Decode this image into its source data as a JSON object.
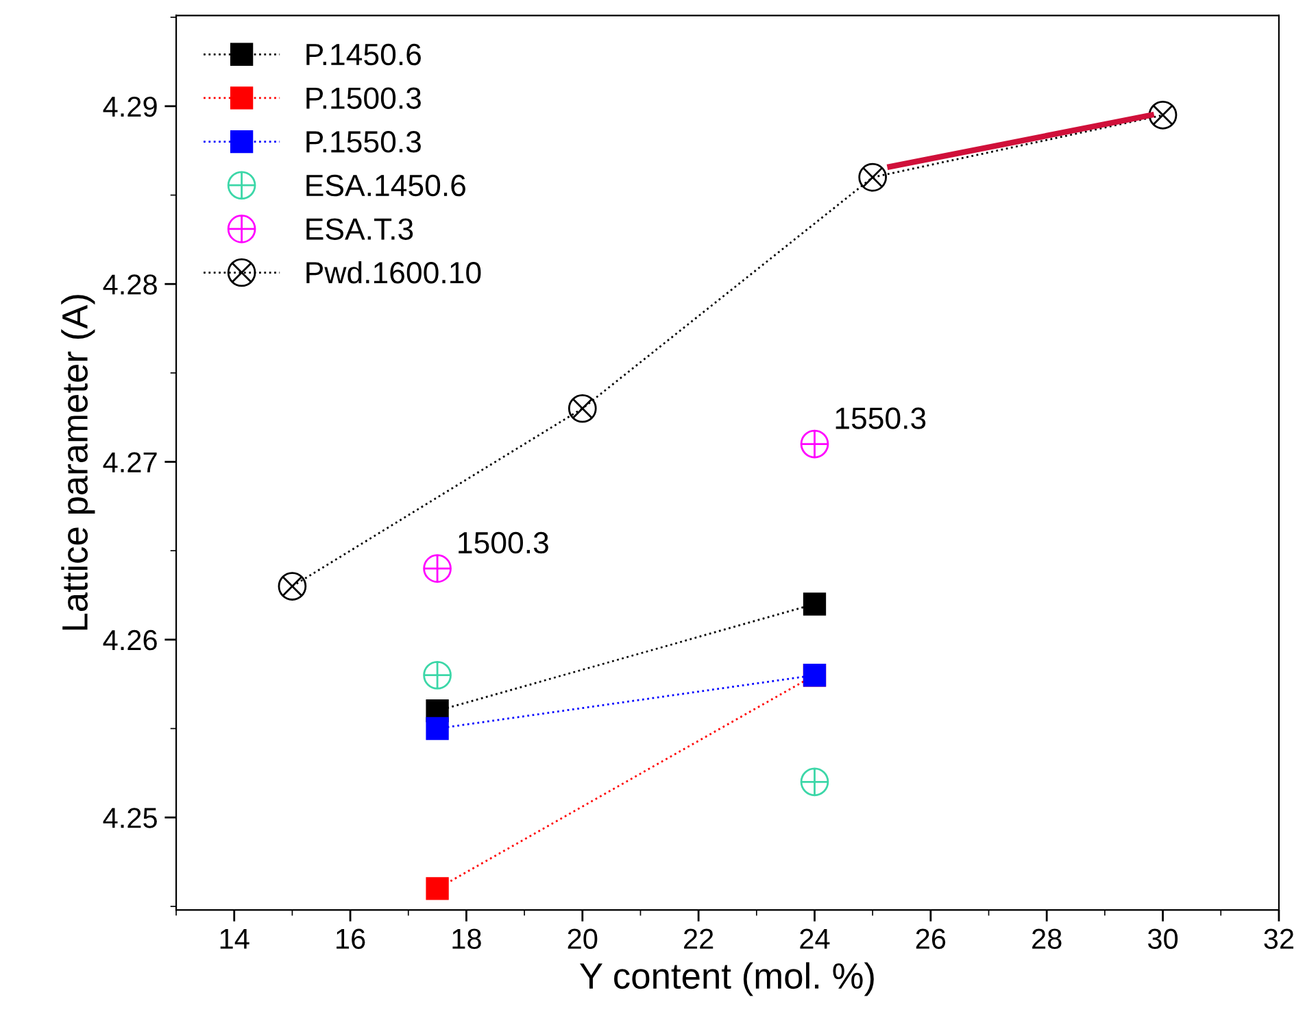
{
  "chart_data": {
    "type": "line",
    "xlabel": "Y content (mol. %)",
    "ylabel": "Lattice parameter (A)",
    "xlim": [
      13,
      32
    ],
    "xticks": [
      14,
      16,
      18,
      20,
      22,
      24,
      26,
      28,
      30,
      32
    ],
    "ylim": [
      4.2448,
      4.2951
    ],
    "yticks": [
      4.25,
      4.26,
      4.27,
      4.28,
      4.29
    ],
    "grid": false,
    "legend": "top left",
    "series": [
      {
        "name": "P.1450.6",
        "color": "#000000",
        "marker": "square",
        "line_style": "dotted",
        "x": [
          17.5,
          24
        ],
        "values": [
          4.256,
          4.262
        ]
      },
      {
        "name": "P.1500.3",
        "color": "#ff0000",
        "marker": "square",
        "line_style": "dotted",
        "x": [
          17.5,
          24
        ],
        "values": [
          4.246,
          4.258
        ]
      },
      {
        "name": "P.1550.3",
        "color": "#0000ff",
        "marker": "square",
        "line_style": "dotted",
        "x": [
          17.5,
          24
        ],
        "values": [
          4.255,
          4.258
        ]
      },
      {
        "name": "ESA.1450.6",
        "type": "scatter",
        "color": "#3cd7a8",
        "marker": "cross",
        "x": [
          17.5,
          24
        ],
        "values": [
          4.258,
          4.252
        ]
      },
      {
        "name": "ESA.T.3",
        "type": "scatter",
        "color": "#ff00ff",
        "marker": "cross",
        "x": [
          17.5,
          24
        ],
        "values": [
          4.264,
          4.271
        ]
      },
      {
        "name": "Pwd.1600.10",
        "color": "#000000",
        "marker": "cross",
        "line_style": "dotted",
        "x": [
          15,
          20,
          25,
          30
        ],
        "values": [
          4.263,
          4.273,
          4.286,
          4.2895
        ]
      },
      {
        "color": "#d0103a",
        "line_style": "solid",
        "marker": "none",
        "x": [
          25.3,
          29.8
        ],
        "values": [
          4.2866,
          4.2895
        ]
      }
    ],
    "annotations": [
      {
        "text": "1500.3",
        "x": 17.5,
        "y": 4.264
      },
      {
        "text": "1550.3",
        "x": 24,
        "y": 4.271
      }
    ]
  }
}
